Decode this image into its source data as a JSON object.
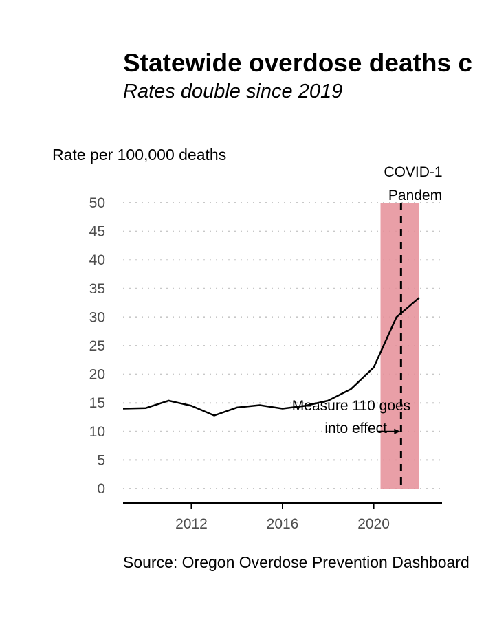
{
  "chart_data": {
    "type": "line",
    "title": "Statewide overdose deaths c",
    "subtitle": "Rates double since 2019",
    "ylabel": "Rate per 100,000 deaths",
    "xlabel": "",
    "source": "Source: Oregon Overdose Prevention Dashboard",
    "ylim": [
      0,
      50
    ],
    "xlim": [
      2009,
      2023
    ],
    "y_ticks": [
      0,
      5,
      10,
      15,
      20,
      25,
      30,
      35,
      40,
      45,
      50
    ],
    "x_ticks": [
      2012,
      2016,
      2020
    ],
    "grid": "horizontal dotted",
    "x": [
      2009,
      2010,
      2011,
      2012,
      2013,
      2014,
      2015,
      2016,
      2017,
      2018,
      2019,
      2020,
      2021,
      2022
    ],
    "values": [
      14.0,
      14.1,
      15.4,
      14.5,
      12.8,
      14.2,
      14.6,
      14.0,
      14.5,
      15.4,
      17.4,
      21.2,
      30.0,
      33.4
    ],
    "covid_band": {
      "start": 2020.3,
      "end": 2022.0,
      "label_line1": "COVID-1",
      "label_line2": "Pandem",
      "color": "#e58e98"
    },
    "measure_line": {
      "x": 2021.2,
      "label_line1": "Measure 110 goes",
      "label_line2": "into effect",
      "arrow_y": 10
    },
    "line_color": "#000000"
  }
}
